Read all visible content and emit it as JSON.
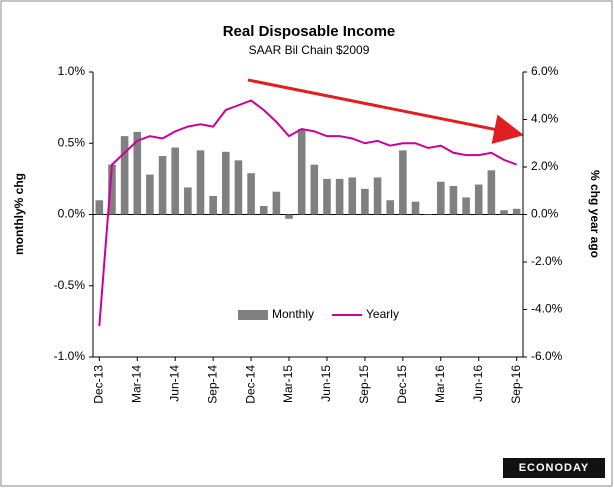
{
  "chart_data": {
    "type": "combo",
    "title": "Real Disposable Income",
    "subtitle": "SAAR Bil Chain $2009",
    "y_label": "monthly% chg",
    "y2_label": "% chg year ago",
    "logo": "ECONODAY",
    "legend": "lower center",
    "categories": [
      "Dec-13",
      null,
      null,
      "Mar-14",
      null,
      null,
      "Jun-14",
      null,
      null,
      "Sep-14",
      null,
      null,
      "Dec-14",
      null,
      null,
      "Mar-15",
      null,
      null,
      "Jun-15",
      null,
      null,
      "Sep-15",
      null,
      null,
      "Dec-15",
      null,
      null,
      "Mar-16",
      null,
      null,
      "Jun-16",
      null,
      null,
      "Sep-16"
    ],
    "series": [
      {
        "name": "Monthly",
        "type": "bar",
        "color": "#808080",
        "values": [
          0.1,
          0.35,
          0.55,
          0.58,
          0.28,
          0.41,
          0.47,
          0.19,
          0.45,
          0.13,
          0.44,
          0.38,
          0.29,
          0.06,
          0.16,
          -0.03,
          0.6,
          0.35,
          0.25,
          0.25,
          0.26,
          0.18,
          0.26,
          0.1,
          0.45,
          0.09,
          0.0,
          0.23,
          0.2,
          0.12,
          0.21,
          0.31,
          0.03,
          0.04
        ]
      },
      {
        "name": "Yearly",
        "type": "line",
        "color": "#cc0099",
        "axis": "y2",
        "values": [
          -4.7,
          2.1,
          2.6,
          3.1,
          3.3,
          3.2,
          3.5,
          3.7,
          3.8,
          3.7,
          4.4,
          4.6,
          4.8,
          4.4,
          3.9,
          3.3,
          3.6,
          3.5,
          3.3,
          3.3,
          3.2,
          3.0,
          3.1,
          2.9,
          3.0,
          3.0,
          2.8,
          2.9,
          2.6,
          2.5,
          2.5,
          2.6,
          2.3,
          2.1
        ]
      }
    ],
    "ylim": [
      -1.0,
      1.0
    ],
    "yticks": [
      {
        "value": -1.0,
        "label": "-1.0%"
      },
      {
        "value": -0.5,
        "label": "-0.5%"
      },
      {
        "value": 0.0,
        "label": "0.0%"
      },
      {
        "value": 0.5,
        "label": "0.5%"
      },
      {
        "value": 1.0,
        "label": "1.0%"
      }
    ],
    "y2lim": [
      -6.0,
      6.0
    ],
    "y2ticks": [
      {
        "value": -6.0,
        "label": "-6.0%"
      },
      {
        "value": -4.0,
        "label": "-4.0%"
      },
      {
        "value": -2.0,
        "label": "-2.0%"
      },
      {
        "value": 0.0,
        "label": "0.0%"
      },
      {
        "value": 2.0,
        "label": "2.0%"
      },
      {
        "value": 4.0,
        "label": "4.0%"
      },
      {
        "value": 6.0,
        "label": "6.0%"
      }
    ],
    "grid": false
  }
}
